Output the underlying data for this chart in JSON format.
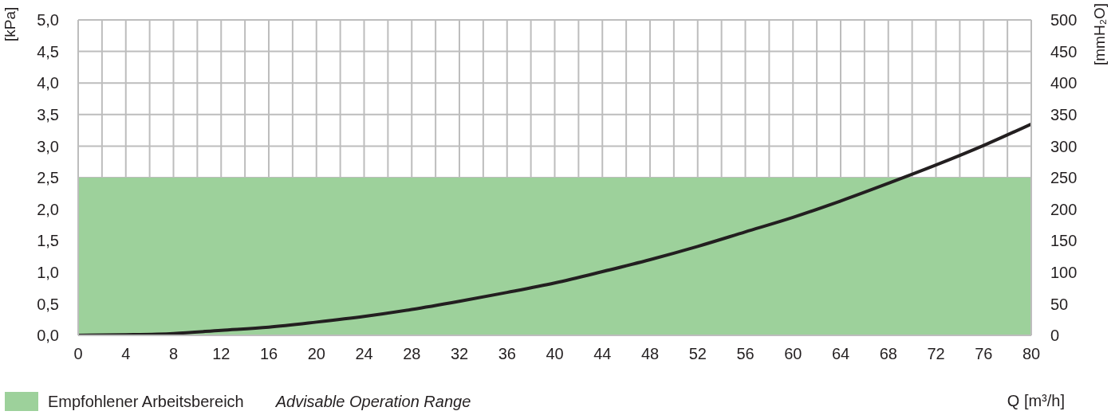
{
  "chart_data": {
    "type": "line",
    "xlabel": "Q [m³/h]",
    "ylabel": "[kPa]",
    "y2label": "[mmH₂O]",
    "x": [
      0,
      4,
      8,
      12,
      16,
      20,
      24,
      28,
      32,
      36,
      40,
      44,
      48,
      52,
      56,
      60,
      64,
      68,
      72,
      76,
      80
    ],
    "series": [
      {
        "color": "#231f20",
        "values": [
          0,
          0.01,
          0.03,
          0.08,
          0.13,
          0.21,
          0.3,
          0.41,
          0.54,
          0.68,
          0.83,
          1.01,
          1.2,
          1.41,
          1.64,
          1.87,
          2.13,
          2.41,
          2.7,
          3.01,
          3.35
        ]
      }
    ],
    "xlim": [
      0,
      80
    ],
    "xticks": [
      0,
      {
        "value": 2,
        "label": null
      },
      4,
      {
        "value": 6,
        "label": null
      },
      8,
      {
        "value": 10,
        "label": null
      },
      12,
      {
        "value": 14,
        "label": null
      },
      16,
      {
        "value": 18,
        "label": null
      },
      20,
      {
        "value": 22,
        "label": null
      },
      24,
      {
        "value": 26,
        "label": null
      },
      28,
      {
        "value": 30,
        "label": null
      },
      32,
      {
        "value": 34,
        "label": null
      },
      36,
      {
        "value": 38,
        "label": null
      },
      40,
      {
        "value": 42,
        "label": null
      },
      44,
      {
        "value": 46,
        "label": null
      },
      48,
      {
        "value": 50,
        "label": null
      },
      52,
      {
        "value": 54,
        "label": null
      },
      56,
      {
        "value": 58,
        "label": null
      },
      60,
      {
        "value": 62,
        "label": null
      },
      64,
      {
        "value": 66,
        "label": null
      },
      68,
      {
        "value": 70,
        "label": null
      },
      72,
      {
        "value": 74,
        "label": null
      },
      76,
      {
        "value": 78,
        "label": null
      },
      80
    ],
    "ylim": [
      0,
      5
    ],
    "yticks": [
      {
        "value": 0,
        "label": "0,0"
      },
      {
        "value": 0.5,
        "label": "0,5"
      },
      {
        "value": 1,
        "label": "1,0"
      },
      {
        "value": 1.5,
        "label": "1,5"
      },
      {
        "value": 2,
        "label": "2,0"
      },
      {
        "value": 2.5,
        "label": "2,5"
      },
      {
        "value": 3,
        "label": "3,0"
      },
      {
        "value": 3.5,
        "label": "3,5"
      },
      {
        "value": 4,
        "label": "4,0"
      },
      {
        "value": 4.5,
        "label": "4,5"
      },
      {
        "value": 5,
        "label": "5,0"
      }
    ],
    "y2lim": [
      0,
      500
    ],
    "y2ticks": [
      0,
      50,
      100,
      150,
      200,
      250,
      300,
      350,
      400,
      450,
      500
    ],
    "bands": [
      {
        "axis": "y",
        "from": 0,
        "to": 2.5,
        "label": "Empfohlener Arbeitsbereich",
        "color": "#9dd19b"
      }
    ],
    "annotations": [
      "Advisable Operation Range"
    ],
    "grid": true,
    "legend": "bottom left",
    "marker": "none",
    "line_style": "solid"
  }
}
